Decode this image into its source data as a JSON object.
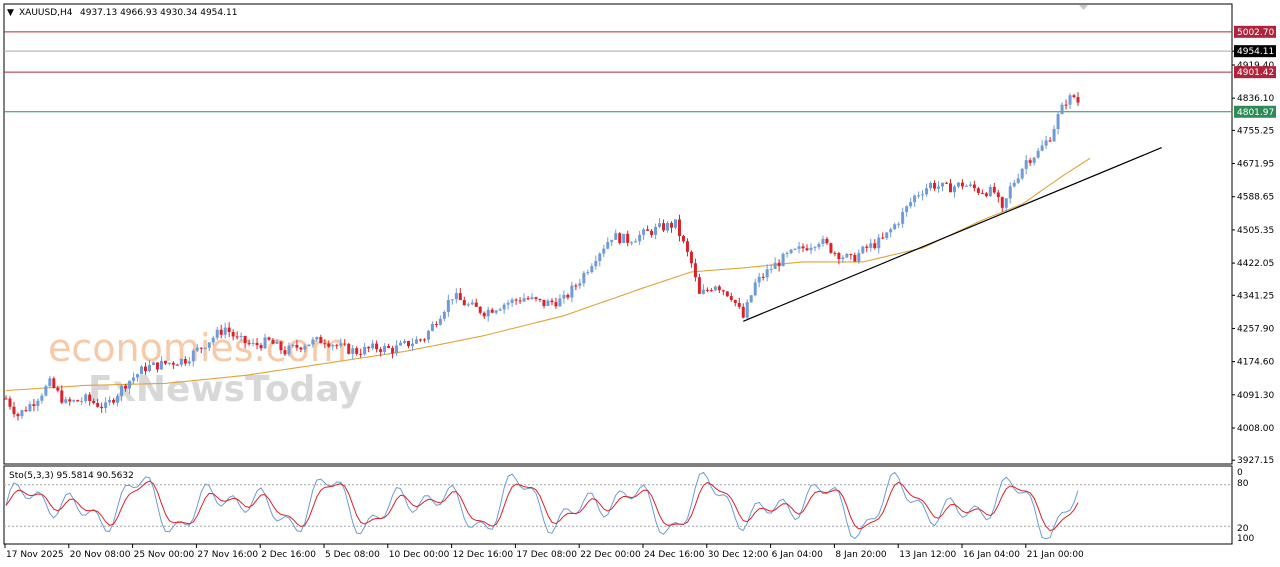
{
  "header": {
    "symbol": "XAUUSD,H4",
    "ohlc": "4937.13 4966.93 4930.34 4954.11"
  },
  "watermark": {
    "line1": "economies.com",
    "line2": "FxNewsToday"
  },
  "price_tags": [
    {
      "label": "5002.70",
      "value": 5002.7,
      "bg": "#b0233a",
      "fg": "#ffffff",
      "line": "#b0233a"
    },
    {
      "label": "4954.11",
      "value": 4954.11,
      "bg": "#000000",
      "fg": "#ffffff",
      "line": "#a9a9a9"
    },
    {
      "label": "4901.42",
      "value": 4901.42,
      "bg": "#b0233a",
      "fg": "#ffffff",
      "line": "#b0233a"
    },
    {
      "label": "4801.97",
      "value": 4801.97,
      "bg": "#2e8b57",
      "fg": "#ffffff",
      "line": "#2e8b57"
    }
  ],
  "stoch": {
    "label": "Sto(5,3,3) 95.5814 90.5632",
    "levels": [
      80,
      20
    ],
    "axis_ticks": [
      "100",
      "80",
      "20",
      "0"
    ]
  },
  "colors": {
    "bull": "#6f9bd6",
    "bear": "#d8232a",
    "ma": "#e0a33a",
    "trendline": "#000000",
    "stoch_main": "#6f9bd6",
    "stoch_signal": "#d8232a"
  },
  "chart_data": {
    "type": "candlestick",
    "title": "XAUUSD,H4",
    "y_ticks": [
      "4954.11",
      "4919.40",
      "4836.10",
      "4755.25",
      "4671.95",
      "4588.65",
      "4505.35",
      "4422.05",
      "4341.25",
      "4257.90",
      "4174.60",
      "4091.30",
      "4008.00",
      "3927.15"
    ],
    "ylim": [
      3927.15,
      5032
    ],
    "x_ticks": [
      "17 Nov 2025",
      "20 Nov 08:00",
      "25 Nov 00:00",
      "27 Nov 16:00",
      "2 Dec 16:00",
      "5 Dec 08:00",
      "10 Dec 00:00",
      "12 Dec 16:00",
      "17 Dec 08:00",
      "22 Dec 00:00",
      "24 Dec 16:00",
      "30 Dec 12:00",
      "6 Jan 04:00",
      "8 Jan 20:00",
      "13 Jan 12:00",
      "16 Jan 04:00",
      "21 Jan 00:00"
    ],
    "candle_count": 270,
    "close_path": [
      [
        0,
        4082
      ],
      [
        3,
        4040
      ],
      [
        7,
        4075
      ],
      [
        11,
        4120
      ],
      [
        15,
        4070
      ],
      [
        20,
        4080
      ],
      [
        25,
        4060
      ],
      [
        30,
        4120
      ],
      [
        35,
        4160
      ],
      [
        40,
        4170
      ],
      [
        45,
        4180
      ],
      [
        50,
        4220
      ],
      [
        55,
        4260
      ],
      [
        58,
        4230
      ],
      [
        62,
        4215
      ],
      [
        66,
        4225
      ],
      [
        70,
        4200
      ],
      [
        75,
        4220
      ],
      [
        80,
        4230
      ],
      [
        84,
        4210
      ],
      [
        88,
        4200
      ],
      [
        93,
        4210
      ],
      [
        97,
        4205
      ],
      [
        101,
        4220
      ],
      [
        105,
        4235
      ],
      [
        108,
        4280
      ],
      [
        112,
        4340
      ],
      [
        116,
        4315
      ],
      [
        120,
        4300
      ],
      [
        125,
        4320
      ],
      [
        130,
        4335
      ],
      [
        135,
        4320
      ],
      [
        140,
        4330
      ],
      [
        144,
        4380
      ],
      [
        148,
        4440
      ],
      [
        152,
        4490
      ],
      [
        156,
        4480
      ],
      [
        160,
        4495
      ],
      [
        164,
        4510
      ],
      [
        168,
        4520
      ],
      [
        172,
        4420
      ],
      [
        174,
        4340
      ],
      [
        178,
        4370
      ],
      [
        182,
        4340
      ],
      [
        185,
        4285
      ],
      [
        188,
        4370
      ],
      [
        192,
        4410
      ],
      [
        196,
        4440
      ],
      [
        200,
        4460
      ],
      [
        204,
        4480
      ],
      [
        208,
        4450
      ],
      [
        212,
        4430
      ],
      [
        216,
        4460
      ],
      [
        220,
        4480
      ],
      [
        224,
        4530
      ],
      [
        228,
        4590
      ],
      [
        232,
        4620
      ],
      [
        236,
        4610
      ],
      [
        240,
        4620
      ],
      [
        244,
        4605
      ],
      [
        248,
        4600
      ],
      [
        250,
        4550
      ],
      [
        252,
        4610
      ],
      [
        256,
        4680
      ],
      [
        259,
        4700
      ],
      [
        262,
        4740
      ],
      [
        264,
        4790
      ],
      [
        266,
        4830
      ],
      [
        268,
        4840
      ],
      [
        270,
        4810
      ],
      [
        271,
        4780
      ],
      [
        273,
        4820
      ],
      [
        276,
        4880
      ],
      [
        278,
        4954
      ]
    ],
    "ma_path": [
      [
        0,
        4102
      ],
      [
        20,
        4115
      ],
      [
        40,
        4120
      ],
      [
        60,
        4140
      ],
      [
        80,
        4170
      ],
      [
        100,
        4200
      ],
      [
        120,
        4240
      ],
      [
        140,
        4290
      ],
      [
        160,
        4360
      ],
      [
        172,
        4400
      ],
      [
        185,
        4410
      ],
      [
        200,
        4425
      ],
      [
        215,
        4425
      ],
      [
        230,
        4460
      ],
      [
        245,
        4530
      ],
      [
        255,
        4570
      ],
      [
        265,
        4640
      ],
      [
        272,
        4685
      ]
    ],
    "trendline": [
      [
        185,
        4276
      ],
      [
        290,
        4712
      ]
    ],
    "stoch_note": "Stochastic oscillator (5,3,3) with 80/20 levels"
  }
}
